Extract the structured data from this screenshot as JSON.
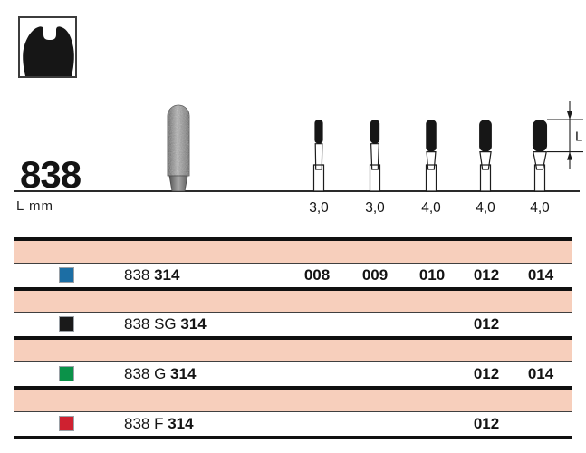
{
  "header": {
    "icon": "tooth-crown-icon",
    "figure_number": "838",
    "unit_label": "L mm",
    "dimension_label": "L"
  },
  "figure": {
    "burs": [
      {
        "l_mm_label": "3,0",
        "l_mm": 3.0,
        "iso": "008"
      },
      {
        "l_mm_label": "3,0",
        "l_mm": 3.0,
        "iso": "009"
      },
      {
        "l_mm_label": "4,0",
        "l_mm": 4.0,
        "iso": "010"
      },
      {
        "l_mm_label": "4,0",
        "l_mm": 4.0,
        "iso": "012"
      },
      {
        "l_mm_label": "4,0",
        "l_mm": 4.0,
        "iso": "014"
      }
    ]
  },
  "table": {
    "size_columns": [
      "008",
      "009",
      "010",
      "012",
      "014"
    ],
    "band_color": "#f7cfbc",
    "rows": [
      {
        "color_name": "blue",
        "color": "#1c6ea4",
        "name_prefix": "838",
        "name_bold": "314",
        "sizes": [
          "008",
          "009",
          "010",
          "012",
          "014"
        ]
      },
      {
        "color_name": "black",
        "color": "#1a1a1a",
        "name_prefix": "838 SG",
        "name_bold": "314",
        "sizes": [
          "012"
        ]
      },
      {
        "color_name": "green",
        "color": "#0b9249",
        "name_prefix": "838 G",
        "name_bold": "314",
        "sizes": [
          "012",
          "014"
        ]
      },
      {
        "color_name": "red",
        "color": "#cf2130",
        "name_prefix": "838 F",
        "name_bold": "314",
        "sizes": [
          "012"
        ]
      }
    ]
  }
}
